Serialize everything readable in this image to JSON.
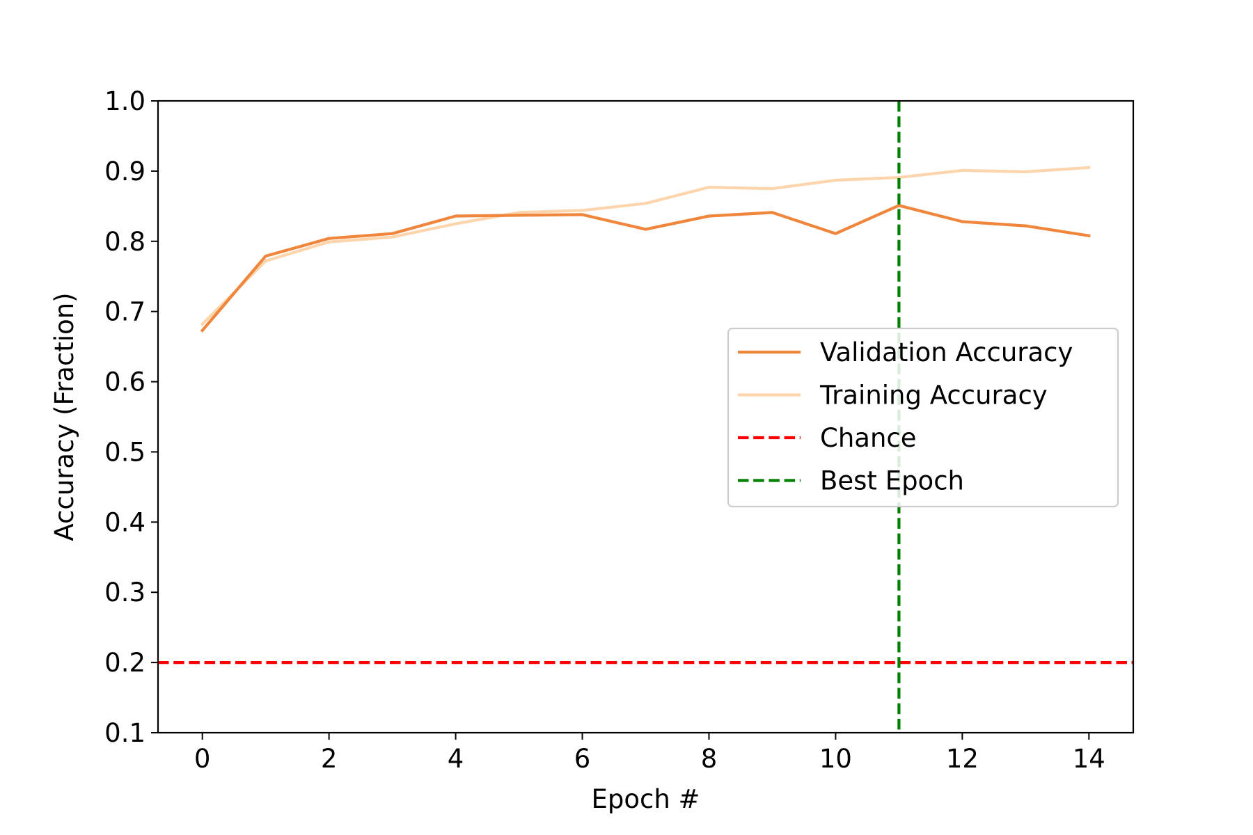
{
  "chart_data": {
    "type": "line",
    "xlabel": "Epoch #",
    "ylabel": "Accuracy (Fraction)",
    "xlim": [
      -0.7,
      14.7
    ],
    "ylim": [
      0.1,
      1.0
    ],
    "xticks": [
      0,
      2,
      4,
      6,
      8,
      10,
      12,
      14
    ],
    "yticks": [
      0.1,
      0.2,
      0.3,
      0.4,
      0.5,
      0.6,
      0.7,
      0.8,
      0.9,
      1.0
    ],
    "xtick_labels": [
      "0",
      "2",
      "4",
      "6",
      "8",
      "10",
      "12",
      "14"
    ],
    "ytick_labels": [
      "0.1",
      "0.2",
      "0.3",
      "0.4",
      "0.5",
      "0.6",
      "0.7",
      "0.8",
      "0.9",
      "1.0"
    ],
    "grid": false,
    "legend_position": "center-right",
    "x": [
      0,
      1,
      2,
      3,
      4,
      5,
      6,
      7,
      8,
      9,
      10,
      11,
      12,
      13,
      14
    ],
    "series": [
      {
        "name": "Validation Accuracy",
        "color": "#f0853c",
        "style": "solid",
        "values": [
          0.673,
          0.779,
          0.804,
          0.811,
          0.836,
          0.837,
          0.838,
          0.817,
          0.836,
          0.841,
          0.811,
          0.851,
          0.828,
          0.822,
          0.808
        ]
      },
      {
        "name": "Training Accuracy",
        "color": "#fdd5ad",
        "style": "solid",
        "values": [
          0.682,
          0.772,
          0.799,
          0.806,
          0.825,
          0.841,
          0.844,
          0.854,
          0.877,
          0.875,
          0.887,
          0.891,
          0.901,
          0.899,
          0.905
        ]
      }
    ],
    "reference_lines": [
      {
        "name": "Chance",
        "orientation": "horizontal",
        "value": 0.2,
        "color": "#ff0000",
        "style": "dashed"
      },
      {
        "name": "Best Epoch",
        "orientation": "vertical",
        "value": 11,
        "color": "#007f00",
        "style": "dashed"
      }
    ]
  }
}
